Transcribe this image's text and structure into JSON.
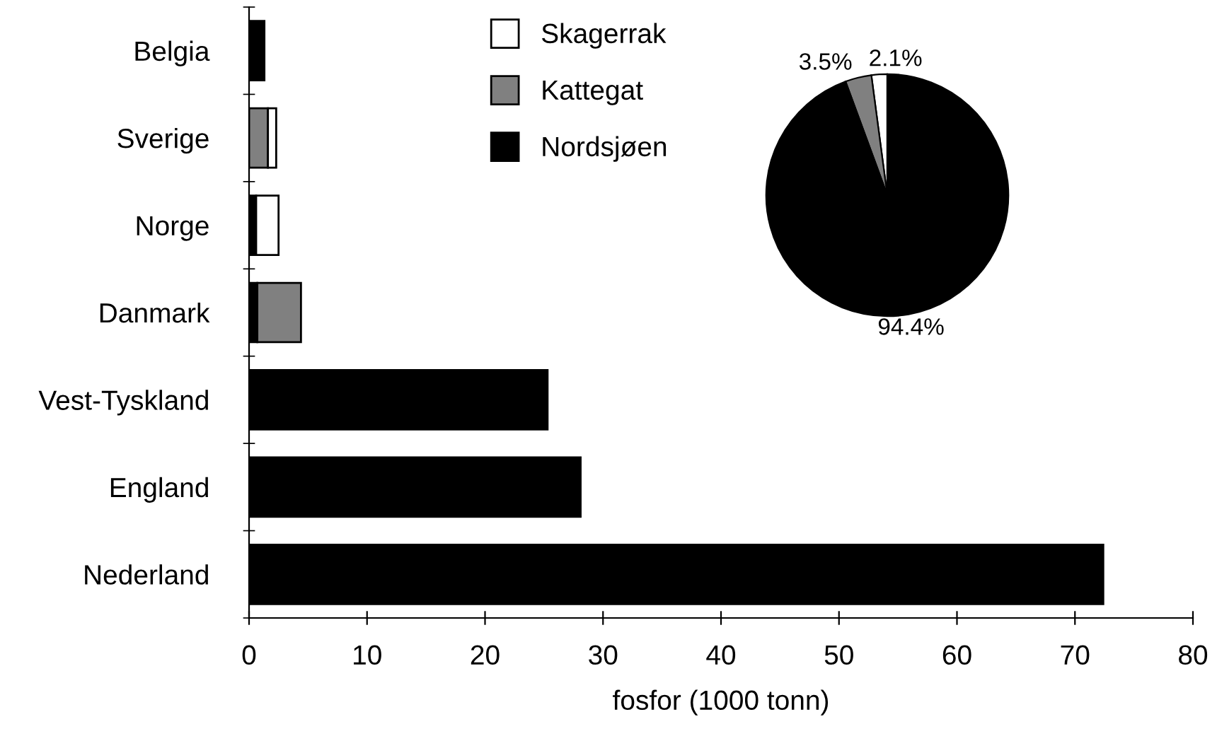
{
  "chart_data": [
    {
      "type": "bar",
      "orientation": "horizontal",
      "stacked": true,
      "xlabel": "fosfor (1000 tonn)",
      "categories": [
        "Belgia",
        "Sverige",
        "Norge",
        "Danmark",
        "Vest-Tyskland",
        "England",
        "Nederland"
      ],
      "series": [
        {
          "name": "Nordsjøen",
          "color": "#000000",
          "values": [
            1.3,
            0,
            0.6,
            0.7,
            25.3,
            28.1,
            72.4
          ]
        },
        {
          "name": "Kattegat",
          "color": "#808080",
          "values": [
            0,
            1.6,
            0,
            3.7,
            0,
            0,
            0
          ]
        },
        {
          "name": "Skagerrak",
          "color": "#ffffff",
          "values": [
            0,
            0.7,
            1.9,
            0,
            0,
            0,
            0
          ]
        }
      ],
      "xlim": [
        0,
        80
      ],
      "xticks": [
        0,
        10,
        20,
        30,
        40,
        50,
        60,
        70,
        80
      ],
      "grid": false,
      "legend": "top"
    },
    {
      "type": "pie",
      "categories": [
        null,
        null,
        null
      ],
      "values": [
        2.1,
        3.5,
        94.4
      ],
      "colors": [
        "#ffffff",
        "#808080",
        "#000000"
      ],
      "value_labels": [
        "2.1%",
        "3.5%",
        "94.4%"
      ]
    }
  ]
}
